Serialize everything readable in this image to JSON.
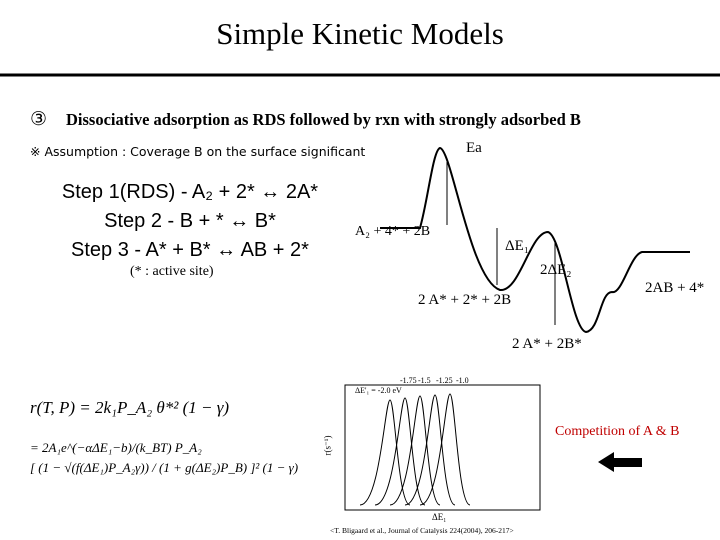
{
  "header": {
    "title": "Simple Kinetic Models"
  },
  "section": {
    "marker": "③",
    "heading": "Dissociative adsorption as RDS followed by rxn with strongly adsorbed B",
    "assumption": "※ Assumption : Coverage B on the surface significant"
  },
  "steps": [
    "Step 1(RDS) - A₂ + 2* ↔ 2A*",
    "Step 2 - B + * ↔ B*",
    "Step 3 - A* + B* ↔ AB + 2*"
  ],
  "note": "(* : active site)",
  "diagram": {
    "ea": "Ea",
    "start": "A₂ + 4* + 2B",
    "de1": "ΔE₁",
    "de2": "2ΔE₂",
    "level2": "2 A* + 2* + 2B",
    "level3": "2 A* + 2B*",
    "end": "2AB + 4*"
  },
  "formula": {
    "line1": "r(T, P) = 2k₁P_A₂ θ*² (1 − γ)",
    "line2a": "= 2A₁e^(−αΔE₁−b)/(k_BT) P_A₂",
    "line2b": "[ (1 − √(f(ΔE₁)P_A₂γ)) / (1 + g(ΔE₂)P_B) ]² (1 − γ)"
  },
  "inset": {
    "ylabel": "r(s⁻¹)",
    "xlabel": "ΔE₁",
    "curve_labels": [
      "ΔE'₁ = -2.0 eV",
      "-1.75",
      "-1.5",
      "-1.25",
      "-1.0"
    ]
  },
  "competition": "Competition of A & B",
  "citation": "<T. Bligaard et al., Journal of Catalysis 224(2004), 206-217>"
}
